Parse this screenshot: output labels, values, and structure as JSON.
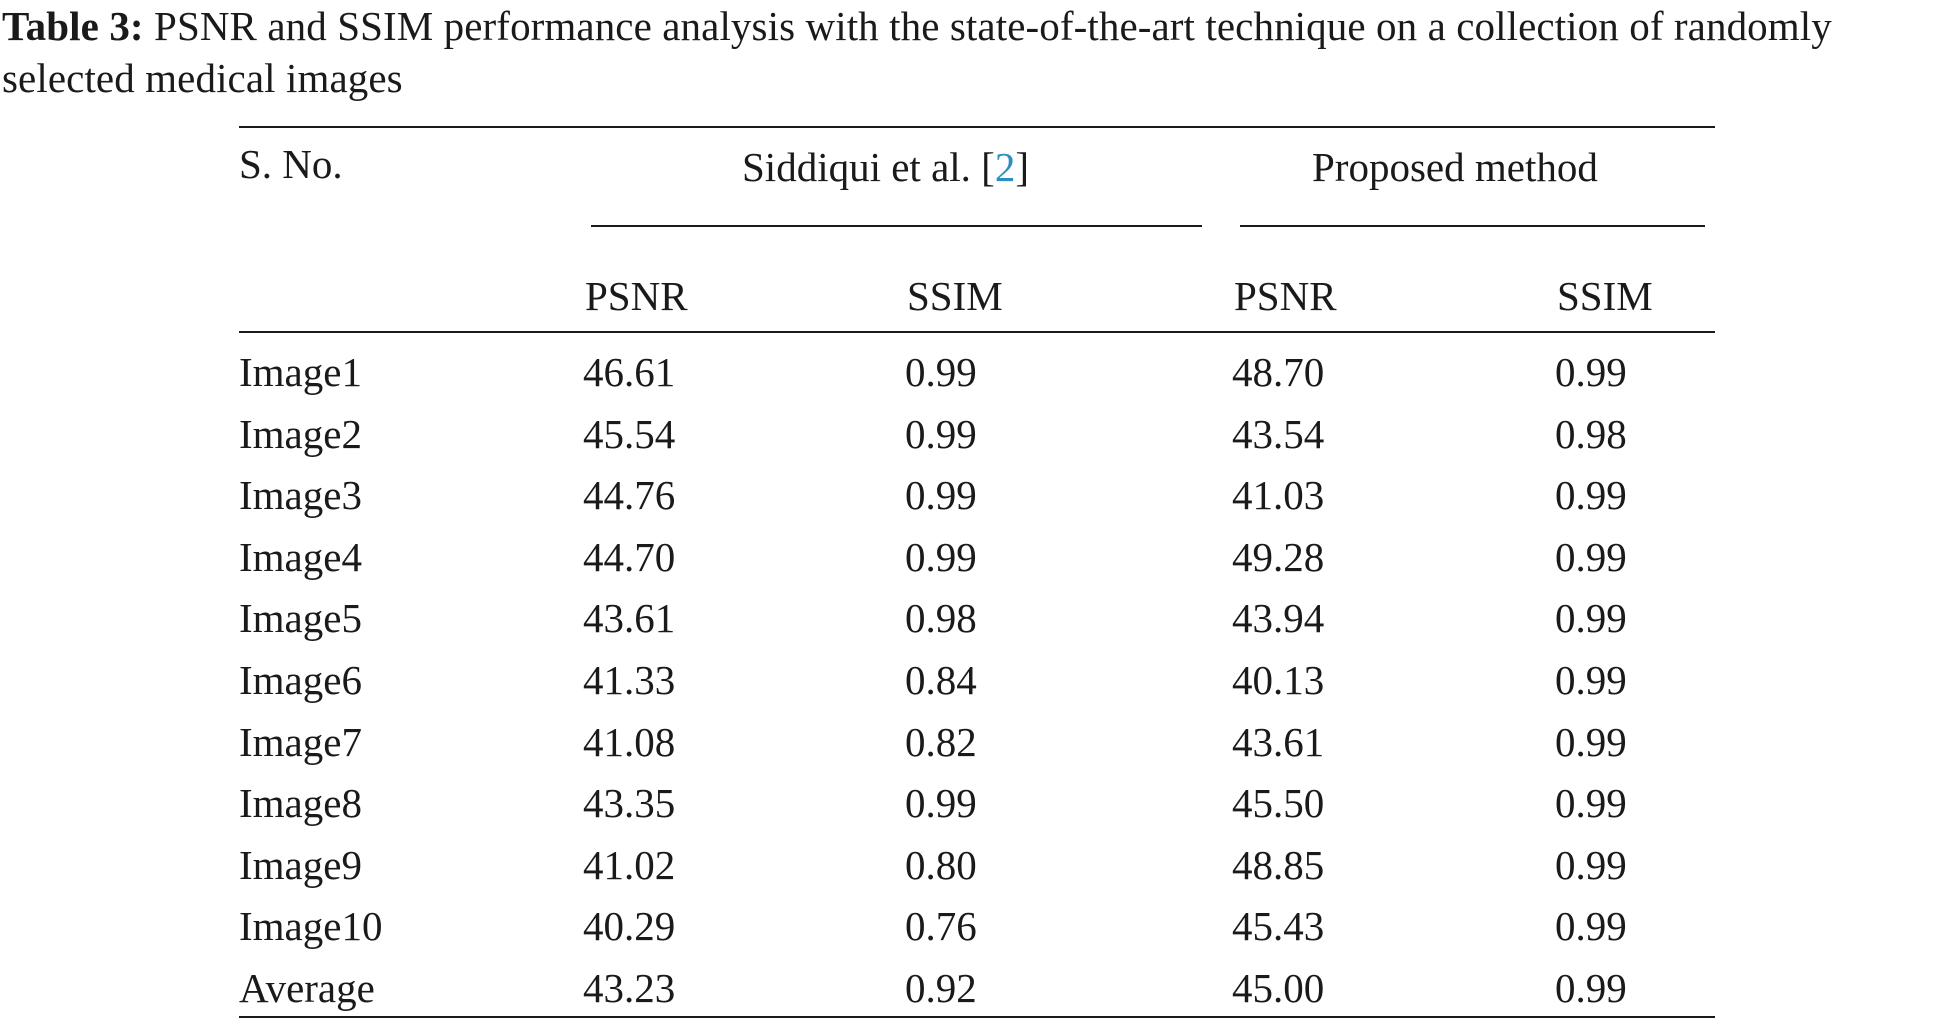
{
  "caption": {
    "label": "Table 3:",
    "text": " PSNR and SSIM performance analysis with the state-of-the-art technique on a collection of randomly selected medical images"
  },
  "table": {
    "header": {
      "col0": "S. No.",
      "group1_prefix": "Siddiqui et al. [",
      "group1_ref": "2",
      "group1_suffix": "]",
      "group2": "Proposed method",
      "sub": [
        "PSNR",
        "SSIM",
        "PSNR",
        "SSIM"
      ]
    },
    "rows": [
      [
        "Image1",
        "46.61",
        "0.99",
        "48.70",
        "0.99"
      ],
      [
        "Image2",
        "45.54",
        "0.99",
        "43.54",
        "0.98"
      ],
      [
        "Image3",
        "44.76",
        "0.99",
        "41.03",
        "0.99"
      ],
      [
        "Image4",
        "44.70",
        "0.99",
        "49.28",
        "0.99"
      ],
      [
        "Image5",
        "43.61",
        "0.98",
        "43.94",
        "0.99"
      ],
      [
        "Image6",
        "41.33",
        "0.84",
        "40.13",
        "0.99"
      ],
      [
        "Image7",
        "41.08",
        "0.82",
        "43.61",
        "0.99"
      ],
      [
        "Image8",
        "43.35",
        "0.99",
        "45.50",
        "0.99"
      ],
      [
        "Image9",
        "41.02",
        "0.80",
        "48.85",
        "0.99"
      ],
      [
        "Image10",
        "40.29",
        "0.76",
        "45.43",
        "0.99"
      ],
      [
        "Average",
        "43.23",
        "0.92",
        "45.00",
        "0.99"
      ]
    ]
  }
}
